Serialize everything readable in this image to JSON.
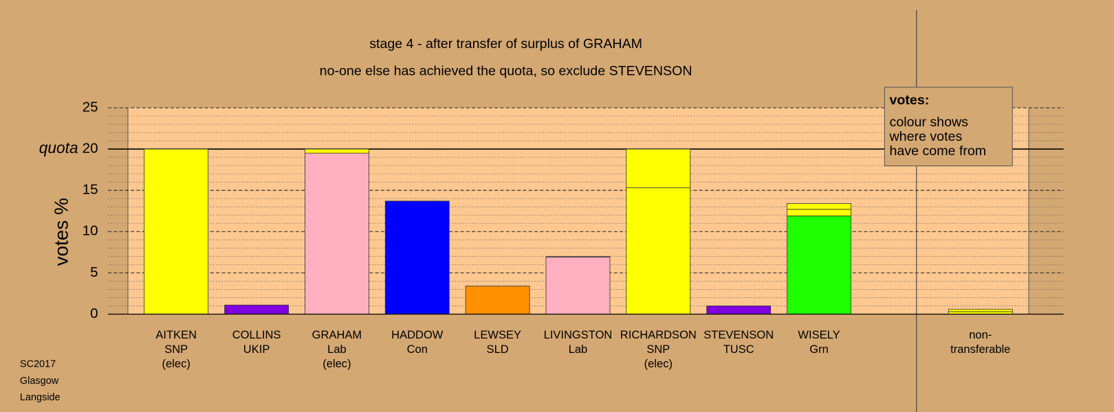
{
  "chart_data": {
    "type": "bar",
    "title": "stage 4 - after transfer of surplus of GRAHAM",
    "subtitle": "no-one else has achieved the quota, so exclude STEVENSON",
    "y_label": "votes %",
    "quota_label": "quota",
    "quota": 20,
    "ylim": [
      0,
      25
    ],
    "yticks": [
      0,
      5,
      10,
      15,
      20,
      25
    ],
    "minor_yticks": [
      1,
      2,
      3,
      4,
      6,
      7,
      8,
      9,
      11,
      12,
      13,
      14,
      16,
      17,
      18,
      19,
      21,
      22,
      23,
      24
    ],
    "categories": [
      [
        "AITKEN",
        "SNP",
        "(elec)"
      ],
      [
        "COLLINS",
        "UKIP"
      ],
      [
        "GRAHAM",
        "Lab",
        "(elec)"
      ],
      [
        "HADDOW",
        "Con"
      ],
      [
        "LEWSEY",
        "SLD"
      ],
      [
        "LIVINGSTON",
        "Lab"
      ],
      [
        "RICHARDSON",
        "SNP",
        "(elec)"
      ],
      [
        "STEVENSON",
        "TUSC"
      ],
      [
        "WISELY",
        "Grn"
      ]
    ],
    "segments": [
      [
        {
          "value": 20,
          "color": "#ffff00"
        }
      ],
      [
        {
          "value": 1.1,
          "color": "#8000e0"
        }
      ],
      [
        {
          "value": 19.5,
          "color": "#ffb0c0"
        },
        {
          "value": 0.5,
          "color": "#ffff00"
        }
      ],
      [
        {
          "value": 13.7,
          "color": "#0000ff"
        }
      ],
      [
        {
          "value": 3.4,
          "color": "#ff9000"
        }
      ],
      [
        {
          "value": 6.9,
          "color": "#ffb0c0"
        },
        {
          "value": 0.1,
          "color": "#ffb0c0"
        }
      ],
      [
        {
          "value": 15.3,
          "color": "#ffff00"
        },
        {
          "value": 4.7,
          "color": "#ffff00"
        }
      ],
      [
        {
          "value": 1.0,
          "color": "#8000e0"
        }
      ],
      [
        {
          "value": 11.9,
          "color": "#20ff00"
        },
        {
          "value": 0.8,
          "color": "#ffff00"
        },
        {
          "value": 0.7,
          "color": "#ffff00"
        }
      ]
    ],
    "non_transferable": {
      "label": [
        "non-",
        "transferable"
      ],
      "segments": [
        {
          "value": 0.3,
          "color": "#ffff00"
        },
        {
          "value": 0.3,
          "color": "#ffff00"
        }
      ]
    },
    "legend": {
      "title": "votes:",
      "lines": [
        "colour shows",
        "where votes",
        "have come from"
      ]
    },
    "footnote": [
      "SC2017",
      "Glasgow",
      "Langside"
    ]
  }
}
